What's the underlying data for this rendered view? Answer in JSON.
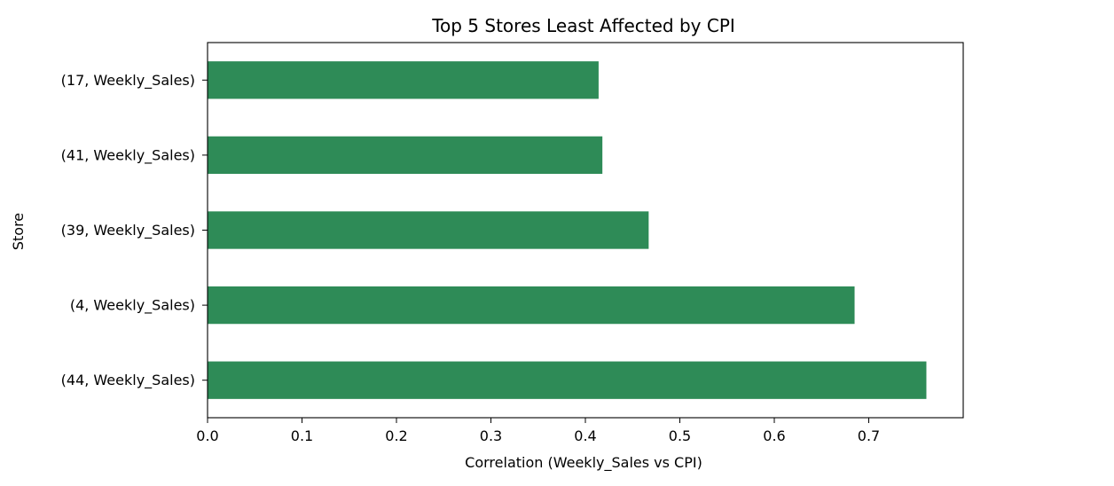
{
  "chart_data": {
    "type": "bar",
    "orientation": "horizontal",
    "title": "Top 5 Stores Least Affected by CPI",
    "xlabel": "Correlation (Weekly_Sales vs CPI)",
    "ylabel": "Store",
    "categories": [
      "(17, Weekly_Sales)",
      "(41, Weekly_Sales)",
      "(39, Weekly_Sales)",
      "(4, Weekly_Sales)",
      "(44, Weekly_Sales)"
    ],
    "values": [
      0.414,
      0.418,
      0.467,
      0.685,
      0.761
    ],
    "xlim": [
      0.0,
      0.8
    ],
    "xticks": [
      0.0,
      0.1,
      0.2,
      0.3,
      0.4,
      0.5,
      0.6,
      0.7
    ],
    "xtick_labels": [
      "0.0",
      "0.1",
      "0.2",
      "0.3",
      "0.4",
      "0.5",
      "0.6",
      "0.7"
    ],
    "grid": false,
    "legend": false,
    "bar_color": "#2e8b57"
  }
}
